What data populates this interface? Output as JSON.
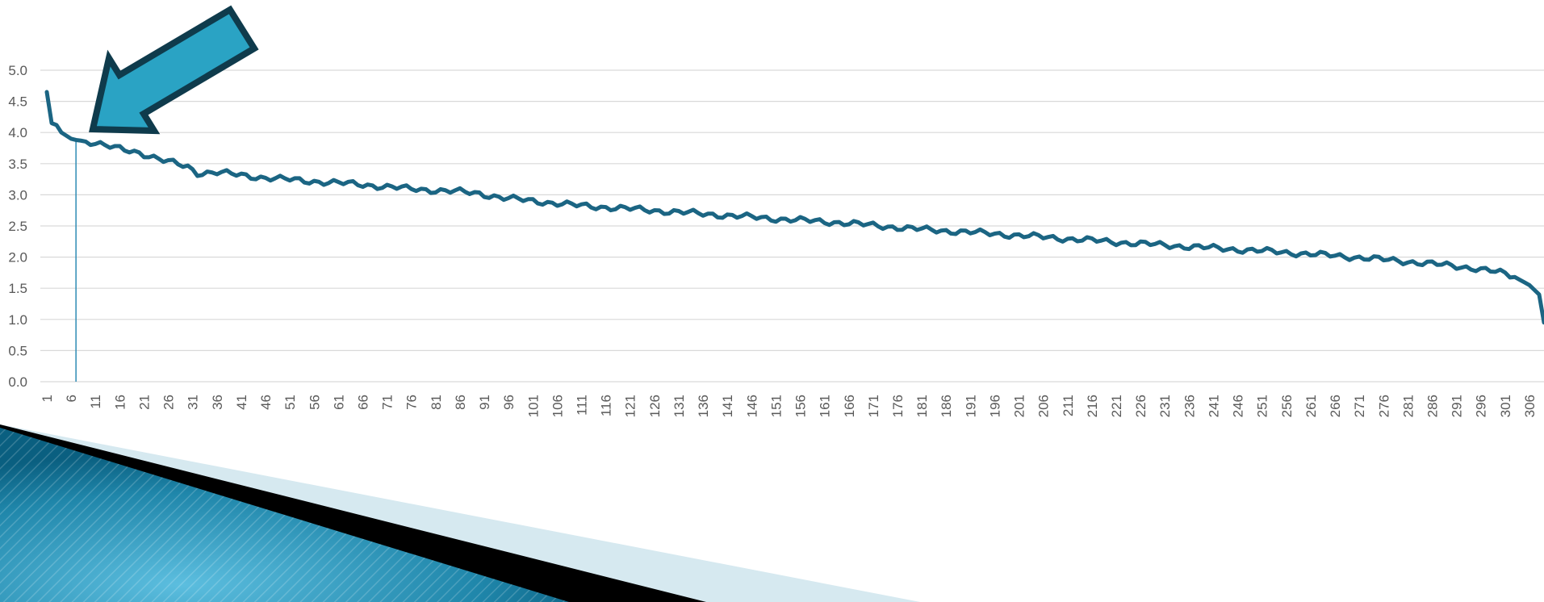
{
  "colors": {
    "series": "#1b6583",
    "gridline": "#d9d9d9",
    "tick_text": "#595959",
    "marker_line": "#2e8bb4",
    "arrow_fill": "#2aa3c4",
    "arrow_stroke": "#0f3b4c",
    "banner_light": "#d6e9f0",
    "banner_dark": "#000000",
    "banner_blue_a": "#0a5f80",
    "banner_blue_b": "#5cbedf"
  },
  "icons": {
    "arrow": "callout-arrow-icon"
  },
  "chart_data": {
    "type": "line",
    "title": "",
    "xlabel": "",
    "ylabel": "",
    "ylim": [
      0,
      5
    ],
    "yticks": [
      "0.0",
      "0.5",
      "1.0",
      "1.5",
      "2.0",
      "2.5",
      "3.0",
      "3.5",
      "4.0",
      "4.5",
      "5.0"
    ],
    "x_count": 309,
    "xticks": [
      "1",
      "6",
      "11",
      "16",
      "21",
      "26",
      "31",
      "36",
      "41",
      "46",
      "51",
      "56",
      "61",
      "66",
      "71",
      "76",
      "81",
      "86",
      "91",
      "96",
      "101",
      "106",
      "111",
      "116",
      "121",
      "126",
      "131",
      "136",
      "141",
      "146",
      "151",
      "156",
      "161",
      "166",
      "171",
      "176",
      "181",
      "186",
      "191",
      "196",
      "201",
      "206",
      "211",
      "216",
      "221",
      "226",
      "231",
      "236",
      "241",
      "246",
      "251",
      "256",
      "261",
      "266",
      "271",
      "276",
      "281",
      "286",
      "291",
      "296",
      "301",
      "306"
    ],
    "grid": true,
    "legend": "none",
    "highlight_x": 7,
    "series_keypoints": [
      [
        1,
        4.65
      ],
      [
        2,
        4.15
      ],
      [
        3,
        4.12
      ],
      [
        4,
        4.0
      ],
      [
        5,
        3.95
      ],
      [
        6,
        3.9
      ],
      [
        7,
        3.88
      ],
      [
        8,
        3.87
      ],
      [
        10,
        3.85
      ],
      [
        15,
        3.75
      ],
      [
        20,
        3.68
      ],
      [
        25,
        3.55
      ],
      [
        30,
        3.45
      ],
      [
        32,
        3.35
      ],
      [
        36,
        3.36
      ],
      [
        45,
        3.28
      ],
      [
        55,
        3.22
      ],
      [
        65,
        3.17
      ],
      [
        75,
        3.1
      ],
      [
        86,
        3.05
      ],
      [
        90,
        3.02
      ],
      [
        95,
        2.95
      ],
      [
        110,
        2.83
      ],
      [
        120,
        2.78
      ],
      [
        135,
        2.7
      ],
      [
        150,
        2.62
      ],
      [
        165,
        2.55
      ],
      [
        180,
        2.45
      ],
      [
        195,
        2.38
      ],
      [
        210,
        2.3
      ],
      [
        225,
        2.22
      ],
      [
        240,
        2.15
      ],
      [
        255,
        2.08
      ],
      [
        270,
        2.0
      ],
      [
        285,
        1.9
      ],
      [
        295,
        1.82
      ],
      [
        300,
        1.75
      ],
      [
        303,
        1.68
      ],
      [
        306,
        1.55
      ],
      [
        308,
        1.4
      ],
      [
        309,
        0.95
      ]
    ]
  }
}
